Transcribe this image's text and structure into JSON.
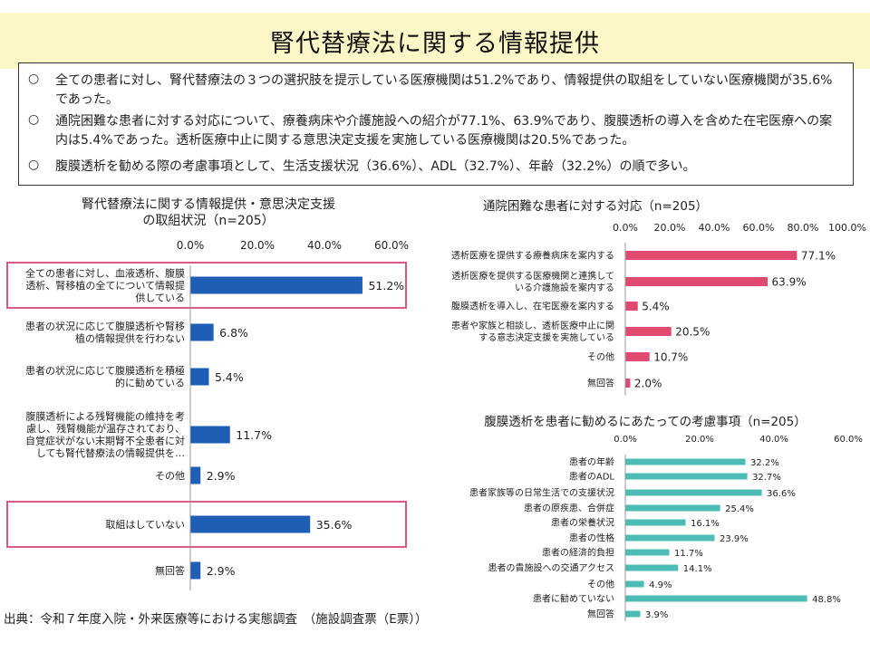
{
  "page": {
    "title": "腎代替療法に関する情報提供",
    "summary": [
      {
        "bullet": "○",
        "text": "全ての患者に対し、腎代替療法の３つの選択肢を提示している医療機関は51.2%であり、情報提供の取組をしていない医療機関が35.6%であった。"
      },
      {
        "bullet": "○",
        "text": "通院困難な患者に対する対応について、療養病床や介護施設への紹介が77.1%、63.9%であり、腹膜透析の導入を含めた在宅医療への案内は5.4%であった。透析医療中止に関する意思決定支援を実施している医療機関は20.5%であった。"
      },
      {
        "bullet": "○",
        "text": "腹膜透析を勧める際の考慮事項として、生活支援状況（36.6%）、ADL（32.7%）、年齢（32.2%）の順で多い。"
      }
    ],
    "footer": "出典：令和７年度入院・外来医療等における実態調査　（施設調査票（E票））"
  },
  "chart_data": [
    {
      "type": "bar",
      "orientation": "horizontal",
      "title": "腎代替療法に関する情報提供・意思決定支援\nの取組状況（n=205）",
      "categories": [
        "全ての患者に対し、血液透析、腹膜\n透析、腎移植の全てについて情報提\n供している",
        "患者の状況に応じて腹膜透析や腎移\n植の情報提供を行わない",
        "患者の状況に応じて腹膜透析を積極\n的に勧めている",
        "腹膜透析による残腎機能の維持を考\n慮し、残腎機能が温存されており、\n自覚症状がない末期腎不全患者に対\nしても腎代替療法の情報提供を…",
        "その他",
        "取組はしていない",
        "無回答"
      ],
      "values": [
        51.2,
        6.8,
        5.4,
        11.7,
        2.9,
        35.6,
        2.9
      ],
      "value_labels": [
        "51.2%",
        "6.8%",
        "5.4%",
        "11.7%",
        "2.9%",
        "35.6%",
        "2.9%"
      ],
      "xlim": [
        0,
        60
      ],
      "ticks": [
        "0.0%",
        "20.0%",
        "40.0%",
        "60.0%"
      ],
      "highlighted_categories": [
        0,
        5
      ],
      "bar_color": "#1e5eb4",
      "highlight_color": "#d9467a"
    },
    {
      "type": "bar",
      "orientation": "horizontal",
      "title": "通院困難な患者に対する対応（n=205）",
      "categories": [
        "透析医療を提供する療養病床を案内する",
        "透析医療を提供する医療機関と連携して\nいる介護施設を案内する",
        "腹膜透析を導入し、在宅医療を案内する",
        "患者や家族と相談し、透析医療中止に関\nする意志決定支援を実施している",
        "その他",
        "無回答"
      ],
      "values": [
        77.1,
        63.9,
        5.4,
        20.5,
        10.7,
        2.0
      ],
      "value_labels": [
        "77.1%",
        "63.9%",
        "5.4%",
        "20.5%",
        "10.7%",
        "2.0%"
      ],
      "xlim": [
        0,
        100
      ],
      "ticks": [
        "0.0%",
        "20.0%",
        "40.0%",
        "60.0%",
        "80.0%",
        "100.0%"
      ],
      "bar_color": "#e04a70"
    },
    {
      "type": "bar",
      "orientation": "horizontal",
      "title": "腹膜透析を患者に勧めるにあたっての考慮事項（n=205）",
      "categories": [
        "患者の年齢",
        "患者のADL",
        "患者家族等の日常生活での支援状況",
        "患者の原疾患、合併症",
        "患者の栄養状況",
        "患者の性格",
        "患者の経済的負担",
        "患者の貴施設への交通アクセス",
        "その他",
        "患者に勧めていない",
        "無回答"
      ],
      "values": [
        32.2,
        32.7,
        36.6,
        25.4,
        16.1,
        23.9,
        11.7,
        14.1,
        4.9,
        48.8,
        3.9
      ],
      "value_labels": [
        "32.2%",
        "32.7%",
        "36.6%",
        "25.4%",
        "16.1%",
        "23.9%",
        "11.7%",
        "14.1%",
        "4.9%",
        "48.8%",
        "3.9%"
      ],
      "xlim": [
        0,
        60
      ],
      "ticks": [
        "0.0%",
        "20.0%",
        "40.0%",
        "60.0%"
      ],
      "bar_color": "#4dbcb4"
    }
  ]
}
